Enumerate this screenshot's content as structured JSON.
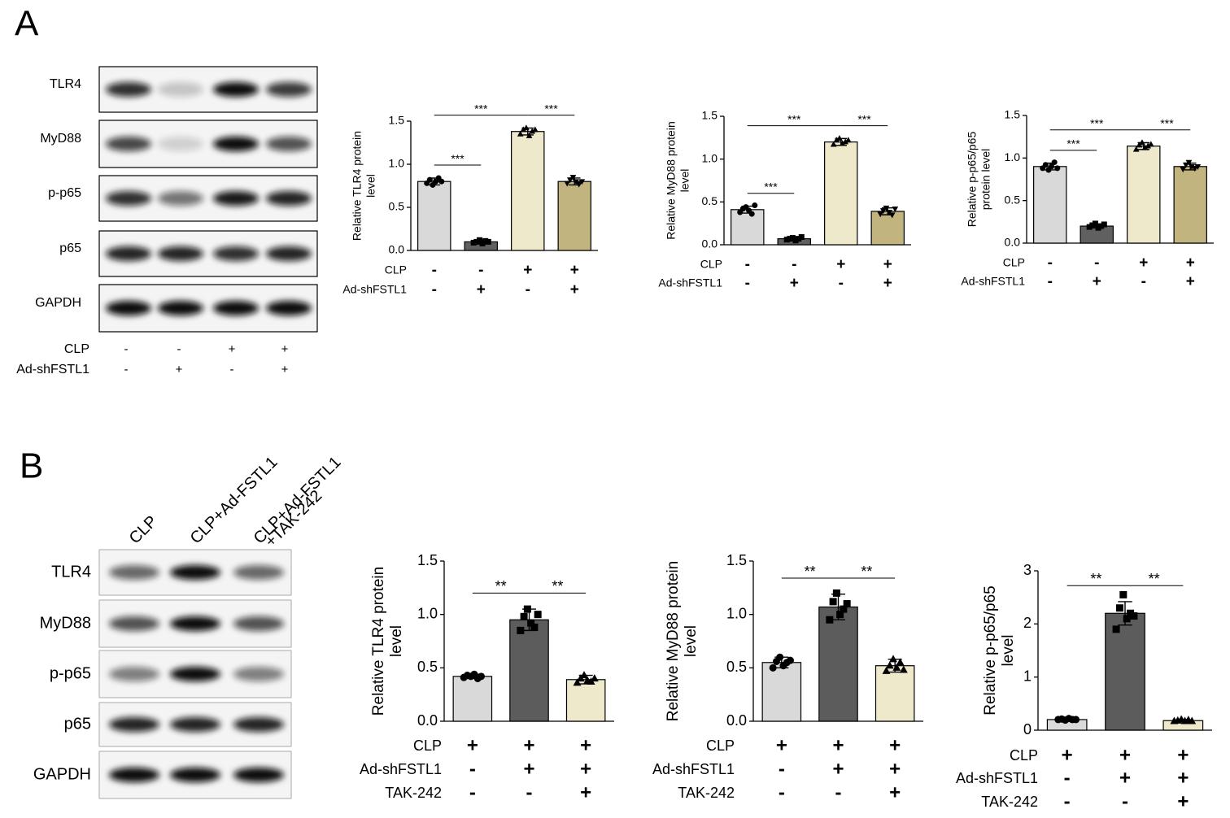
{
  "panel_labels": [
    "A",
    "B"
  ],
  "blot_a": {
    "rows": [
      "TLR4",
      "MyD88",
      "p-p65",
      "p65",
      "GAPDH"
    ],
    "conditions": [
      {
        "name": "CLP",
        "signs": [
          "-",
          "-",
          "+",
          "+"
        ]
      },
      {
        "name": "Ad-shFSTL1",
        "signs": [
          "-",
          "+",
          "-",
          "+"
        ]
      }
    ]
  },
  "blot_b": {
    "rows": [
      "TLR4",
      "MyD88",
      "p-p65",
      "p65",
      "GAPDH"
    ],
    "lanes": [
      [
        "CLP"
      ],
      [
        "CLP+Ad-FSTL1"
      ],
      [
        "CLP+Ad-FSTL1",
        "+TAK-242"
      ]
    ]
  },
  "chart_data": [
    {
      "type": "bar",
      "y_label": [
        "Relative TLR4 protein",
        "level"
      ],
      "conditions": [
        {
          "name": "CLP",
          "signs": [
            "-",
            "-",
            "+",
            "+"
          ]
        },
        {
          "name": "Ad-shFSTL1",
          "signs": [
            "-",
            "+",
            "-",
            "+"
          ]
        }
      ],
      "values": [
        0.8,
        0.1,
        1.38,
        0.8
      ],
      "errors": [
        0.04,
        0.02,
        0.04,
        0.04
      ],
      "colors": [
        "#d9d9d9",
        "#606060",
        "#efe9cc",
        "#c2b47f"
      ],
      "markers": [
        "circle",
        "square",
        "triangle",
        "triangle-down"
      ],
      "points": [
        [
          0.78,
          0.82,
          0.76,
          0.8,
          0.84,
          0.8
        ],
        [
          0.09,
          0.1,
          0.12,
          0.08,
          0.11,
          0.1
        ],
        [
          1.35,
          1.4,
          1.42,
          1.33,
          1.38,
          1.4
        ],
        [
          0.78,
          0.82,
          0.85,
          0.8,
          0.77,
          0.8
        ]
      ],
      "comparisons": [
        {
          "bars": [
            0,
            1
          ],
          "label": "***"
        },
        {
          "bars": [
            0,
            2
          ],
          "label": "***"
        },
        {
          "bars": [
            2,
            3
          ],
          "label": "***"
        }
      ],
      "ylim": [
        0,
        1.5
      ],
      "yticks": [
        {
          "value": 0,
          "label": "0.0"
        },
        0.5,
        {
          "value": 1,
          "label": "1.0"
        },
        1.5
      ]
    },
    {
      "type": "bar",
      "y_label": [
        "Relative MyD88 protein",
        "level"
      ],
      "conditions": [
        {
          "name": "CLP",
          "signs": [
            "-",
            "-",
            "+",
            "+"
          ]
        },
        {
          "name": "Ad-shFSTL1",
          "signs": [
            "-",
            "+",
            "-",
            "+"
          ]
        }
      ],
      "values": [
        0.41,
        0.07,
        1.2,
        0.39
      ],
      "errors": [
        0.04,
        0.02,
        0.04,
        0.04
      ],
      "colors": [
        "#d9d9d9",
        "#606060",
        "#efe9cc",
        "#c2b47f"
      ],
      "markers": [
        "circle",
        "square",
        "triangle",
        "triangle-down"
      ],
      "points": [
        [
          0.38,
          0.42,
          0.44,
          0.4,
          0.36,
          0.46
        ],
        [
          0.06,
          0.07,
          0.08,
          0.05,
          0.07,
          0.09
        ],
        [
          1.17,
          1.22,
          1.24,
          1.18,
          1.2,
          1.22
        ],
        [
          0.36,
          0.4,
          0.43,
          0.38,
          0.35,
          0.42
        ]
      ],
      "comparisons": [
        {
          "bars": [
            0,
            1
          ],
          "label": "***"
        },
        {
          "bars": [
            0,
            2
          ],
          "label": "***"
        },
        {
          "bars": [
            2,
            3
          ],
          "label": "***"
        }
      ],
      "ylim": [
        0,
        1.5
      ],
      "yticks": [
        {
          "value": 0,
          "label": "0.0"
        },
        0.5,
        {
          "value": 1,
          "label": "1.0"
        },
        1.5
      ]
    },
    {
      "type": "bar",
      "y_label": [
        "Relative p-p65/p65",
        "protein level"
      ],
      "conditions": [
        {
          "name": "CLP",
          "signs": [
            "-",
            "-",
            "+",
            "+"
          ]
        },
        {
          "name": "Ad-shFSTL1",
          "signs": [
            "-",
            "+",
            "-",
            "+"
          ]
        }
      ],
      "values": [
        0.9,
        0.2,
        1.14,
        0.9
      ],
      "errors": [
        0.04,
        0.02,
        0.04,
        0.04
      ],
      "colors": [
        "#d9d9d9",
        "#606060",
        "#efe9cc",
        "#c2b47f"
      ],
      "markers": [
        "circle",
        "square",
        "triangle",
        "triangle-down"
      ],
      "points": [
        [
          0.88,
          0.92,
          0.86,
          0.9,
          0.95,
          0.88
        ],
        [
          0.19,
          0.21,
          0.23,
          0.18,
          0.2,
          0.22
        ],
        [
          1.1,
          1.15,
          1.18,
          1.12,
          1.14,
          1.16
        ],
        [
          0.87,
          0.92,
          0.95,
          0.9,
          0.88,
          0.9
        ]
      ],
      "comparisons": [
        {
          "bars": [
            0,
            1
          ],
          "label": "***"
        },
        {
          "bars": [
            0,
            2
          ],
          "label": "***"
        },
        {
          "bars": [
            2,
            3
          ],
          "label": "***"
        }
      ],
      "ylim": [
        0,
        1.5
      ],
      "yticks": [
        {
          "value": 0,
          "label": "0.0"
        },
        0.5,
        {
          "value": 1,
          "label": "1.0"
        },
        1.5
      ]
    },
    {
      "type": "bar",
      "y_label": [
        "Relative TLR4 protein",
        "level"
      ],
      "conditions": [
        {
          "name": "CLP",
          "signs": [
            "+",
            "+",
            "+"
          ]
        },
        {
          "name": "Ad-shFSTL1",
          "signs": [
            "-",
            "+",
            "+"
          ]
        },
        {
          "name": "TAK-242",
          "signs": [
            "-",
            "-",
            "+"
          ]
        }
      ],
      "values": [
        0.42,
        0.95,
        0.39
      ],
      "errors": [
        0.02,
        0.1,
        0.04
      ],
      "colors": [
        "#d9d9d9",
        "#5c5c5c",
        "#efe9cc"
      ],
      "markers": [
        "circle",
        "square",
        "triangle"
      ],
      "points": [
        [
          0.41,
          0.43,
          0.42,
          0.44,
          0.4,
          0.42
        ],
        [
          0.85,
          0.98,
          1.05,
          0.92,
          0.88,
          1.0
        ],
        [
          0.36,
          0.4,
          0.43,
          0.38,
          0.37,
          0.4
        ]
      ],
      "comparisons": [
        {
          "bars": [
            0,
            1
          ],
          "label": "**"
        },
        {
          "bars": [
            1,
            2
          ],
          "label": "**"
        }
      ],
      "ylim": [
        0,
        1.5
      ],
      "yticks": [
        {
          "value": 0,
          "label": "0.0"
        },
        0.5,
        {
          "value": 1,
          "label": "1.0"
        },
        1.5
      ]
    },
    {
      "type": "bar",
      "y_label": [
        "Relative MyD88 protein",
        "level"
      ],
      "conditions": [
        {
          "name": "CLP",
          "signs": [
            "+",
            "+",
            "+"
          ]
        },
        {
          "name": "Ad-shFSTL1",
          "signs": [
            "-",
            "+",
            "+"
          ]
        },
        {
          "name": "TAK-242",
          "signs": [
            "-",
            "-",
            "+"
          ]
        }
      ],
      "values": [
        0.55,
        1.07,
        0.52
      ],
      "errors": [
        0.05,
        0.12,
        0.06
      ],
      "colors": [
        "#d9d9d9",
        "#5c5c5c",
        "#efe9cc"
      ],
      "markers": [
        "circle",
        "square",
        "triangle"
      ],
      "points": [
        [
          0.5,
          0.56,
          0.6,
          0.52,
          0.55,
          0.57
        ],
        [
          0.95,
          1.12,
          1.2,
          1.0,
          1.05,
          1.1
        ],
        [
          0.47,
          0.52,
          0.58,
          0.5,
          0.55,
          0.48
        ]
      ],
      "comparisons": [
        {
          "bars": [
            0,
            1
          ],
          "label": "**"
        },
        {
          "bars": [
            1,
            2
          ],
          "label": "**"
        }
      ],
      "ylim": [
        0,
        1.5
      ],
      "yticks": [
        {
          "value": 0,
          "label": "0.0"
        },
        0.5,
        {
          "value": 1,
          "label": "1.0"
        },
        1.5
      ]
    },
    {
      "type": "bar",
      "y_label": [
        "Relative p-p65/p65",
        "level"
      ],
      "conditions": [
        {
          "name": "CLP",
          "signs": [
            "+",
            "+",
            "+"
          ]
        },
        {
          "name": "Ad-shFSTL1",
          "signs": [
            "-",
            "+",
            "+"
          ]
        },
        {
          "name": "TAK-242",
          "signs": [
            "-",
            "-",
            "+"
          ]
        }
      ],
      "values": [
        0.2,
        2.2,
        0.18
      ],
      "errors": [
        0.03,
        0.22,
        0.02
      ],
      "colors": [
        "#d9d9d9",
        "#5c5c5c",
        "#efe9cc"
      ],
      "markers": [
        "circle",
        "square",
        "triangle"
      ],
      "points": [
        [
          0.2,
          0.21,
          0.19,
          0.22,
          0.2,
          0.2
        ],
        [
          1.9,
          2.3,
          2.55,
          2.1,
          2.2,
          2.15
        ],
        [
          0.17,
          0.18,
          0.2,
          0.17,
          0.19,
          0.17
        ]
      ],
      "comparisons": [
        {
          "bars": [
            0,
            1
          ],
          "label": "**"
        },
        {
          "bars": [
            1,
            2
          ],
          "label": "**"
        }
      ],
      "ylim": [
        0,
        3
      ],
      "yticks": [
        0,
        1,
        2,
        3
      ]
    }
  ]
}
